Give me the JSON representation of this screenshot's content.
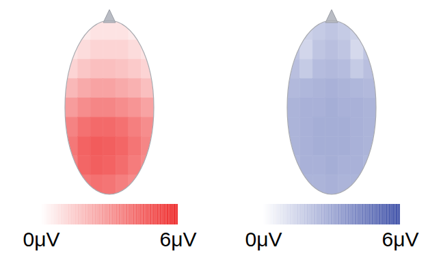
{
  "chart_data": [
    {
      "type": "heatmap",
      "color": "#ee2a2a",
      "cells": [
        [
          0.5,
          0.6,
          0.8,
          0.8,
          0.8,
          0.6,
          0.5
        ],
        [
          0.8,
          1.0,
          1.2,
          1.2,
          1.2,
          1.0,
          0.8
        ],
        [
          1.2,
          1.6,
          1.8,
          1.8,
          1.7,
          1.5,
          1.2
        ],
        [
          2.0,
          2.4,
          2.6,
          2.6,
          2.4,
          2.2,
          1.8
        ],
        [
          2.8,
          3.2,
          3.4,
          3.4,
          3.2,
          3.0,
          2.6
        ],
        [
          3.5,
          4.0,
          4.2,
          4.2,
          4.0,
          3.6,
          3.2
        ],
        [
          3.8,
          4.4,
          4.6,
          4.5,
          4.3,
          3.9,
          3.4
        ],
        [
          3.6,
          4.3,
          4.5,
          4.4,
          4.1,
          3.7,
          3.3
        ],
        [
          3.2,
          3.8,
          4.0,
          3.9,
          3.6,
          3.3,
          3.0
        ]
      ],
      "colorbar": {
        "range": [
          0,
          6
        ],
        "ticks": [
          {
            "value": 0,
            "label": "0μV"
          },
          {
            "value": 6,
            "label": "6μV"
          }
        ]
      }
    },
    {
      "type": "heatmap",
      "color": "#3f51a8",
      "cells": [
        [
          1.8,
          1.6,
          1.8,
          2.0,
          1.8,
          1.6,
          1.8
        ],
        [
          2.0,
          1.4,
          2.0,
          2.2,
          2.0,
          1.3,
          2.0
        ],
        [
          2.2,
          1.8,
          2.3,
          2.4,
          2.3,
          1.8,
          2.2
        ],
        [
          2.4,
          2.5,
          2.6,
          2.7,
          2.6,
          2.5,
          2.4
        ],
        [
          2.6,
          2.7,
          2.7,
          2.8,
          2.7,
          2.7,
          2.6
        ],
        [
          2.6,
          2.7,
          2.8,
          2.8,
          2.8,
          2.7,
          2.6
        ],
        [
          2.6,
          2.7,
          2.8,
          2.8,
          2.8,
          2.7,
          2.6
        ],
        [
          2.5,
          2.7,
          2.7,
          2.8,
          2.7,
          2.7,
          2.5
        ],
        [
          2.4,
          2.6,
          2.6,
          2.7,
          2.6,
          2.6,
          2.4
        ]
      ],
      "colorbar": {
        "range": [
          0,
          6
        ],
        "ticks": [
          {
            "value": 0,
            "label": "0μV"
          },
          {
            "value": 6,
            "label": "6μV"
          }
        ]
      }
    }
  ]
}
